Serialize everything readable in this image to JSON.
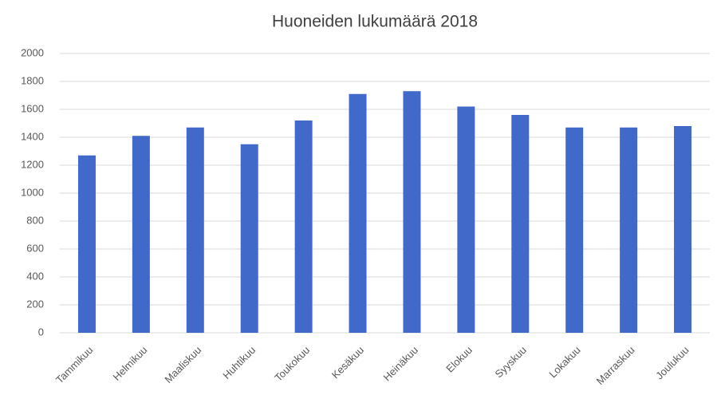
{
  "chart_data": {
    "type": "bar",
    "title": "Huoneiden lukumäärä 2018",
    "categories": [
      "Tammikuu",
      "Helmikuu",
      "Maaliskuu",
      "Huhtikuu",
      "Toukokuu",
      "Kesäkuu",
      "Heinäkuu",
      "Elokuu",
      "Syyskuu",
      "Lokakuu",
      "Marraskuu",
      "Joulukuu"
    ],
    "values": [
      1270,
      1410,
      1470,
      1350,
      1520,
      1710,
      1730,
      1620,
      1560,
      1470,
      1470,
      1480
    ],
    "color": "#4169c9",
    "ylim": [
      0,
      2000
    ],
    "yticks": [
      0,
      200,
      400,
      600,
      800,
      1000,
      1200,
      1400,
      1600,
      1800,
      2000
    ],
    "grid": true
  }
}
